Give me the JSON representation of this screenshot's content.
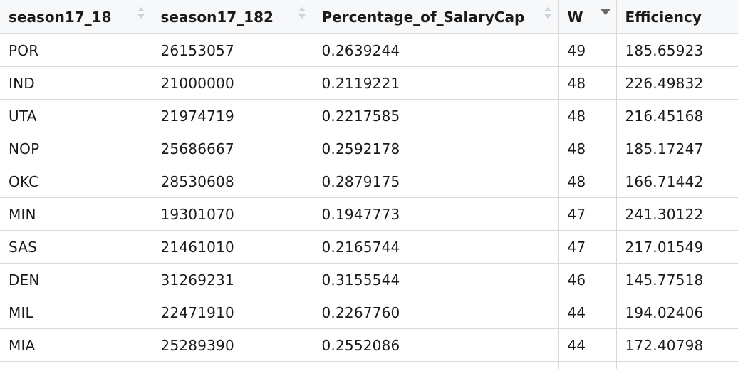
{
  "table": {
    "columns": [
      {
        "label": "season17_18",
        "sort": "none"
      },
      {
        "label": "season17_182",
        "sort": "none"
      },
      {
        "label": "Percentage_of_SalaryCap",
        "sort": "none"
      },
      {
        "label": "W",
        "sort": "desc"
      },
      {
        "label": "Efficiency",
        "sort": "none"
      }
    ],
    "rows": [
      [
        "POR",
        "26153057",
        "0.2639244",
        "49",
        "185.65923"
      ],
      [
        "IND",
        "21000000",
        "0.2119221",
        "48",
        "226.49832"
      ],
      [
        "UTA",
        "21974719",
        "0.2217585",
        "48",
        "216.45168"
      ],
      [
        "NOP",
        "25686667",
        "0.2592178",
        "48",
        "185.17247"
      ],
      [
        "OKC",
        "28530608",
        "0.2879175",
        "48",
        "166.71442"
      ],
      [
        "MIN",
        "19301070",
        "0.1947773",
        "47",
        "241.30122"
      ],
      [
        "SAS",
        "21461010",
        "0.2165744",
        "47",
        "217.01549"
      ],
      [
        "DEN",
        "31269231",
        "0.3155544",
        "46",
        "145.77518"
      ],
      [
        "MIL",
        "22471910",
        "0.2267760",
        "44",
        "194.02406"
      ],
      [
        "MIA",
        "25289390",
        "0.2552086",
        "44",
        "172.40798"
      ]
    ]
  }
}
